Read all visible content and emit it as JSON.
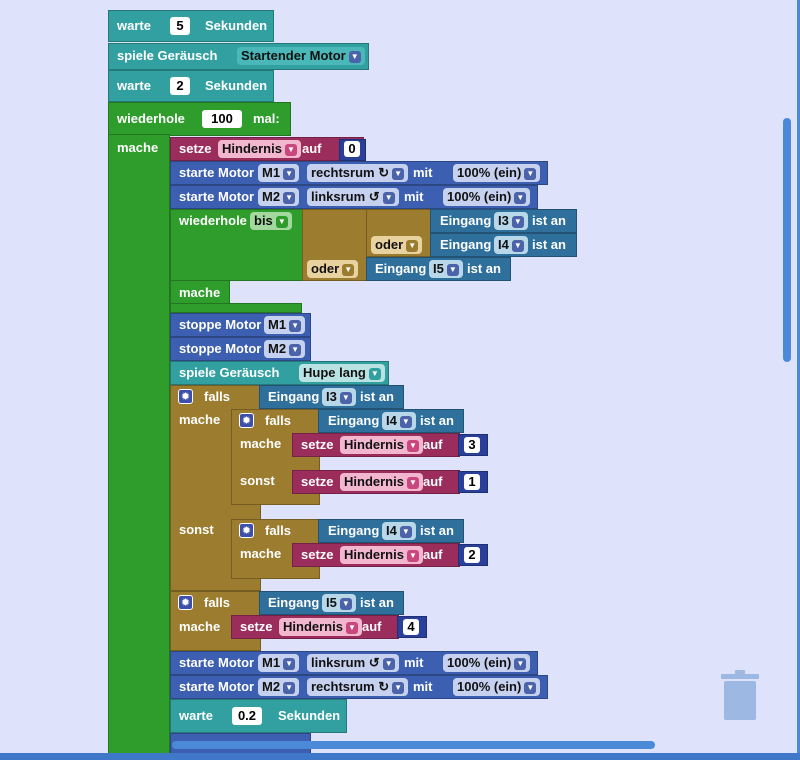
{
  "colors": {
    "teal": "#32a0a0",
    "green": "#2f9d2c",
    "olive": "#9c7c2e",
    "maroon": "#9b2d5c",
    "blue": "#3c5fb1",
    "slate": "#2f6f9b",
    "deepblue": "#2a3f9a",
    "bg": "#dee2fb"
  },
  "wait": {
    "label": "warte",
    "unit": "Sekunden",
    "v1": "5",
    "v2": "2",
    "v3": "0.2"
  },
  "play_sound": {
    "label": "spiele Geräusch",
    "sound1": "Startender Motor",
    "sound2": "Hupe lang"
  },
  "repeat": {
    "label": "wiederhole",
    "count": "100",
    "suffix": "mal:",
    "do": "mache"
  },
  "set_var": {
    "label": "setze",
    "var": "Hindernis",
    "to": "auf",
    "vals": [
      "0",
      "3",
      "1",
      "2",
      "4"
    ]
  },
  "motor": {
    "start": "starte Motor",
    "stop": "stoppe Motor",
    "m1": "M1",
    "m2": "M2",
    "right": "rechtsrum ↻",
    "left": "linksrum ↺",
    "with": "mit",
    "power": "100% (ein)"
  },
  "repeat_until": {
    "label": "wiederhole",
    "mode": "bis",
    "do": "mache"
  },
  "logic": {
    "or": "oder",
    "if": "falls",
    "do": "mache",
    "else": "sonst"
  },
  "input": {
    "label": "Eingang",
    "i3": "I3",
    "i4": "I4",
    "i5": "I5",
    "is_on": "ist an"
  },
  "icons": {
    "gear": "gear-icon",
    "trash": "trash-icon"
  }
}
